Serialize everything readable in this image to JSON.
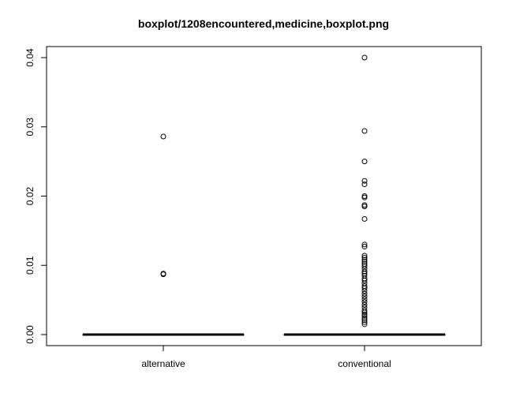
{
  "chart_data": {
    "type": "boxplot",
    "title": "boxplot/1208encountered,medicine,boxplot.png",
    "xlabel": "",
    "ylabel": "",
    "ylim": [
      0,
      0.04
    ],
    "yticks": [
      0.0,
      0.01,
      0.02,
      0.03,
      0.04
    ],
    "ytick_labels": [
      "0.00",
      "0.01",
      "0.02",
      "0.03",
      "0.04"
    ],
    "categories": [
      "alternative",
      "conventional"
    ],
    "series": [
      {
        "category": "alternative",
        "min": 0,
        "q1": 0,
        "median": 0,
        "q3": 0,
        "max": 0,
        "outliers": [
          0.0286,
          0.0088,
          0.0087
        ]
      },
      {
        "category": "conventional",
        "min": 0,
        "q1": 0,
        "median": 0,
        "q3": 0,
        "max": 0,
        "outliers": [
          0.04,
          0.0294,
          0.025,
          0.0222,
          0.0217,
          0.02,
          0.0198,
          0.0187,
          0.0185,
          0.0167,
          0.013,
          0.0127,
          0.0114,
          0.0111,
          0.0108,
          0.0105,
          0.0102,
          0.0099,
          0.0095,
          0.0091,
          0.0088,
          0.0085,
          0.0081,
          0.0078,
          0.0074,
          0.007,
          0.0067,
          0.0063,
          0.0059,
          0.0055,
          0.0051,
          0.0047,
          0.0043,
          0.0039,
          0.0035,
          0.0032,
          0.0029,
          0.0027,
          0.0024,
          0.0021,
          0.0018,
          0.0015
        ]
      }
    ],
    "grid": false,
    "colors": {
      "stroke": "#000000",
      "background": "#ffffff"
    }
  }
}
